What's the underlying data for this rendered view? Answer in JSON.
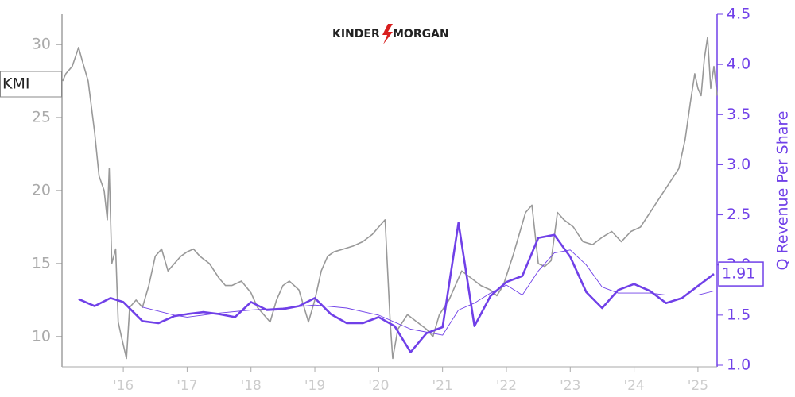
{
  "chart_data": {
    "type": "line",
    "logo": [
      "KINDER",
      "MORGAN"
    ],
    "y2_label": "Q Revenue Per Share",
    "xlim": [
      2015.04,
      2025.3
    ],
    "xticks": [
      {
        "value": 2016,
        "label": "'16"
      },
      {
        "value": 2017,
        "label": "'17"
      },
      {
        "value": 2018,
        "label": "'18"
      },
      {
        "value": 2019,
        "label": "'19"
      },
      {
        "value": 2020,
        "label": "'20"
      },
      {
        "value": 2021,
        "label": "'21"
      },
      {
        "value": 2022,
        "label": "'22"
      },
      {
        "value": 2023,
        "label": "'23"
      },
      {
        "value": 2024,
        "label": "'24"
      },
      {
        "value": 2025,
        "label": "'25"
      }
    ],
    "ylim": [
      7.93,
      32.07
    ],
    "yticks": [
      10,
      15,
      20,
      25,
      30
    ],
    "y2lim": [
      1.0,
      4.5
    ],
    "y2ticks": [
      {
        "value": 1,
        "label": "1.0"
      },
      1.5,
      {
        "value": 2,
        "label": "2.0"
      },
      2.5,
      {
        "value": 3,
        "label": "3.0"
      },
      3.5,
      {
        "value": 4,
        "label": "4.0"
      },
      4.5
    ],
    "series": [
      {
        "name": "KMI",
        "color": "#999999",
        "width": 1.6,
        "x": [
          2015.05,
          2015.1,
          2015.2,
          2015.3,
          2015.35,
          2015.45,
          2015.55,
          2015.62,
          2015.7,
          2015.75,
          2015.78,
          2015.82,
          2015.88,
          2015.92,
          2015.97,
          2016.05,
          2016.1,
          2016.2,
          2016.3,
          2016.4,
          2016.5,
          2016.6,
          2016.7,
          2016.8,
          2016.9,
          2017.0,
          2017.1,
          2017.2,
          2017.35,
          2017.5,
          2017.6,
          2017.7,
          2017.85,
          2018.0,
          2018.1,
          2018.2,
          2018.3,
          2018.4,
          2018.5,
          2018.6,
          2018.75,
          2018.9,
          2019.0,
          2019.1,
          2019.2,
          2019.3,
          2019.45,
          2019.6,
          2019.75,
          2019.9,
          2020.0,
          2020.1,
          2020.18,
          2020.22,
          2020.3,
          2020.45,
          2020.6,
          2020.75,
          2020.85,
          2020.95,
          2021.1,
          2021.3,
          2021.45,
          2021.6,
          2021.75,
          2021.85,
          2021.95,
          2022.1,
          2022.3,
          2022.4,
          2022.5,
          2022.6,
          2022.7,
          2022.8,
          2022.9,
          2023.05,
          2023.2,
          2023.35,
          2023.5,
          2023.65,
          2023.8,
          2023.95,
          2024.1,
          2024.25,
          2024.4,
          2024.55,
          2024.7,
          2024.8,
          2024.88,
          2024.95,
          2025.0,
          2025.05,
          2025.1,
          2025.15,
          2025.2,
          2025.25,
          2025.3
        ],
        "values": [
          27.5,
          28,
          28.5,
          29.8,
          29,
          27.5,
          24,
          21,
          20,
          18,
          21.5,
          15,
          16,
          11,
          10,
          8.5,
          12,
          12.5,
          12,
          13.5,
          15.5,
          16,
          14.5,
          15,
          15.5,
          15.8,
          16,
          15.5,
          15,
          14,
          13.5,
          13.5,
          13.8,
          13,
          12,
          11.5,
          11,
          12.5,
          13.5,
          13.8,
          13.2,
          11,
          12.5,
          14.5,
          15.5,
          15.8,
          16,
          16.2,
          16.5,
          17,
          17.5,
          18,
          11,
          8.5,
          10.5,
          11.5,
          11,
          10.5,
          10,
          11.5,
          12.5,
          14.5,
          14,
          13.5,
          13.2,
          12.8,
          13.5,
          15.5,
          18.5,
          19,
          15,
          14.8,
          15.2,
          18.5,
          18,
          17.5,
          16.5,
          16.3,
          16.8,
          17.2,
          16.5,
          17.2,
          17.5,
          18.5,
          19.5,
          20.5,
          21.5,
          23.5,
          26,
          28,
          27,
          26.5,
          29,
          30.5,
          27,
          28.5,
          26.5
        ]
      },
      {
        "color": "#7040e8",
        "width": 2.6,
        "axis": "y2",
        "x": [
          2015.3,
          2015.55,
          2015.8,
          2016.0,
          2016.3,
          2016.55,
          2016.8,
          2017.0,
          2017.25,
          2017.5,
          2017.75,
          2018.0,
          2018.25,
          2018.5,
          2018.75,
          2019.0,
          2019.25,
          2019.5,
          2019.75,
          2020.0,
          2020.25,
          2020.5,
          2020.75,
          2021.0,
          2021.25,
          2021.5,
          2021.75,
          2022.0,
          2022.25,
          2022.5,
          2022.75,
          2023.0,
          2023.25,
          2023.5,
          2023.75,
          2024.0,
          2024.25,
          2024.5,
          2024.75,
          2025.0,
          2025.25
        ],
        "values": [
          1.66,
          1.59,
          1.67,
          1.63,
          1.44,
          1.42,
          1.49,
          1.51,
          1.53,
          1.51,
          1.48,
          1.63,
          1.55,
          1.56,
          1.59,
          1.67,
          1.51,
          1.42,
          1.42,
          1.48,
          1.39,
          1.13,
          1.32,
          1.38,
          2.42,
          1.39,
          1.69,
          1.83,
          1.89,
          2.27,
          2.3,
          2.08,
          1.73,
          1.57,
          1.75,
          1.81,
          1.74,
          1.62,
          1.67,
          1.79,
          1.91
        ]
      },
      {
        "color": "#7040e8",
        "width": 0.9,
        "axis": "y2",
        "x": [
          2016.3,
          2016.8,
          2017.0,
          2017.5,
          2018.0,
          2018.5,
          2019.0,
          2019.5,
          2020.0,
          2020.5,
          2021.0,
          2021.25,
          2021.5,
          2021.75,
          2022.0,
          2022.25,
          2022.5,
          2022.75,
          2023.0,
          2023.25,
          2023.5,
          2023.75,
          2024.0,
          2024.25,
          2024.5,
          2024.75,
          2025.0,
          2025.25
        ],
        "values": [
          1.58,
          1.5,
          1.48,
          1.52,
          1.55,
          1.57,
          1.6,
          1.57,
          1.5,
          1.36,
          1.3,
          1.55,
          1.62,
          1.72,
          1.8,
          1.7,
          1.94,
          2.12,
          2.15,
          2.0,
          1.78,
          1.72,
          1.72,
          1.72,
          1.7,
          1.7,
          1.7,
          1.74
        ]
      }
    ]
  }
}
